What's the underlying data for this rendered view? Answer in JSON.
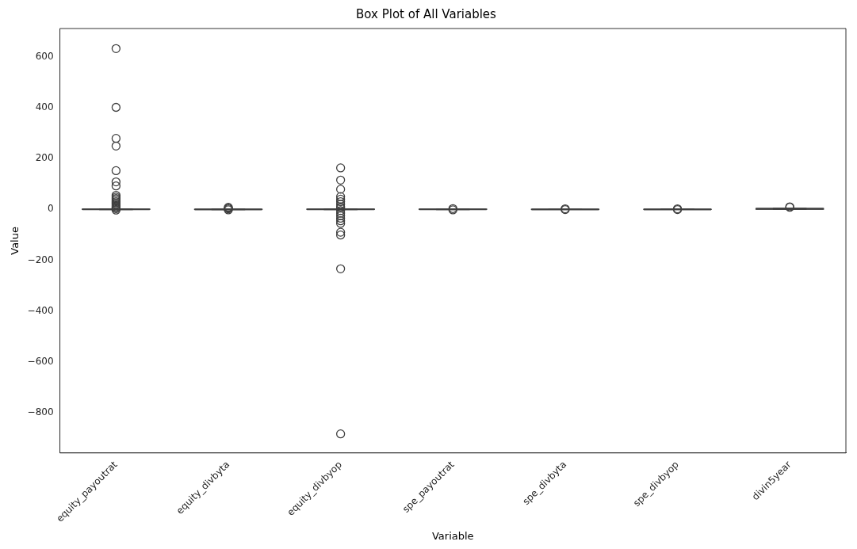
{
  "chart_data": {
    "type": "box",
    "title": "Box Plot of All Variables",
    "xlabel": "Variable",
    "ylabel": "Value",
    "categories": [
      "equity_payoutrat",
      "equity_divbyta",
      "equity_divbyop",
      "spe_payoutrat",
      "spe_divbyta",
      "spe_divbyop",
      "divin5year"
    ],
    "color": "#3f3f3f",
    "boxes": [
      {
        "low": -1,
        "q1": 0,
        "median": 0.3,
        "q3": 0.6,
        "high": 1.5,
        "outliers": [
          632,
          401,
          279,
          249,
          152,
          108,
          92,
          55,
          48,
          42,
          36,
          30,
          25,
          20,
          15,
          10,
          6,
          3,
          -3
        ]
      },
      {
        "low": -0.5,
        "q1": 0,
        "median": 0.1,
        "q3": 0.3,
        "high": 0.7,
        "outliers": [
          8,
          5,
          2,
          -2
        ]
      },
      {
        "low": -1,
        "q1": -0.2,
        "median": 0.2,
        "q3": 0.6,
        "high": 1.5,
        "outliers": [
          163,
          115,
          79,
          50,
          40,
          30,
          20,
          10,
          5,
          -5,
          -15,
          -25,
          -35,
          -45,
          -55,
          -90,
          -101,
          -234,
          -883
        ]
      },
      {
        "low": -0.5,
        "q1": 0,
        "median": 0.2,
        "q3": 0.5,
        "high": 1,
        "outliers": [
          3,
          -2
        ]
      },
      {
        "low": -0.2,
        "q1": 0,
        "median": 0.05,
        "q3": 0.1,
        "high": 0.3,
        "outliers": [
          2,
          -1
        ]
      },
      {
        "low": -0.2,
        "q1": 0,
        "median": 0.1,
        "q3": 0.2,
        "high": 0.4,
        "outliers": [
          2,
          -1
        ]
      },
      {
        "low": 0.5,
        "q1": 1,
        "median": 2,
        "q3": 3,
        "high": 4,
        "outliers": [
          10,
          8
        ]
      }
    ],
    "ylim": [
      -958,
      711
    ],
    "yticks": [
      {
        "value": -800,
        "label": "−800"
      },
      {
        "value": -600,
        "label": "−600"
      },
      {
        "value": -400,
        "label": "−400"
      },
      {
        "value": -200,
        "label": "−200"
      },
      0,
      200,
      400,
      600
    ],
    "grid": false
  }
}
